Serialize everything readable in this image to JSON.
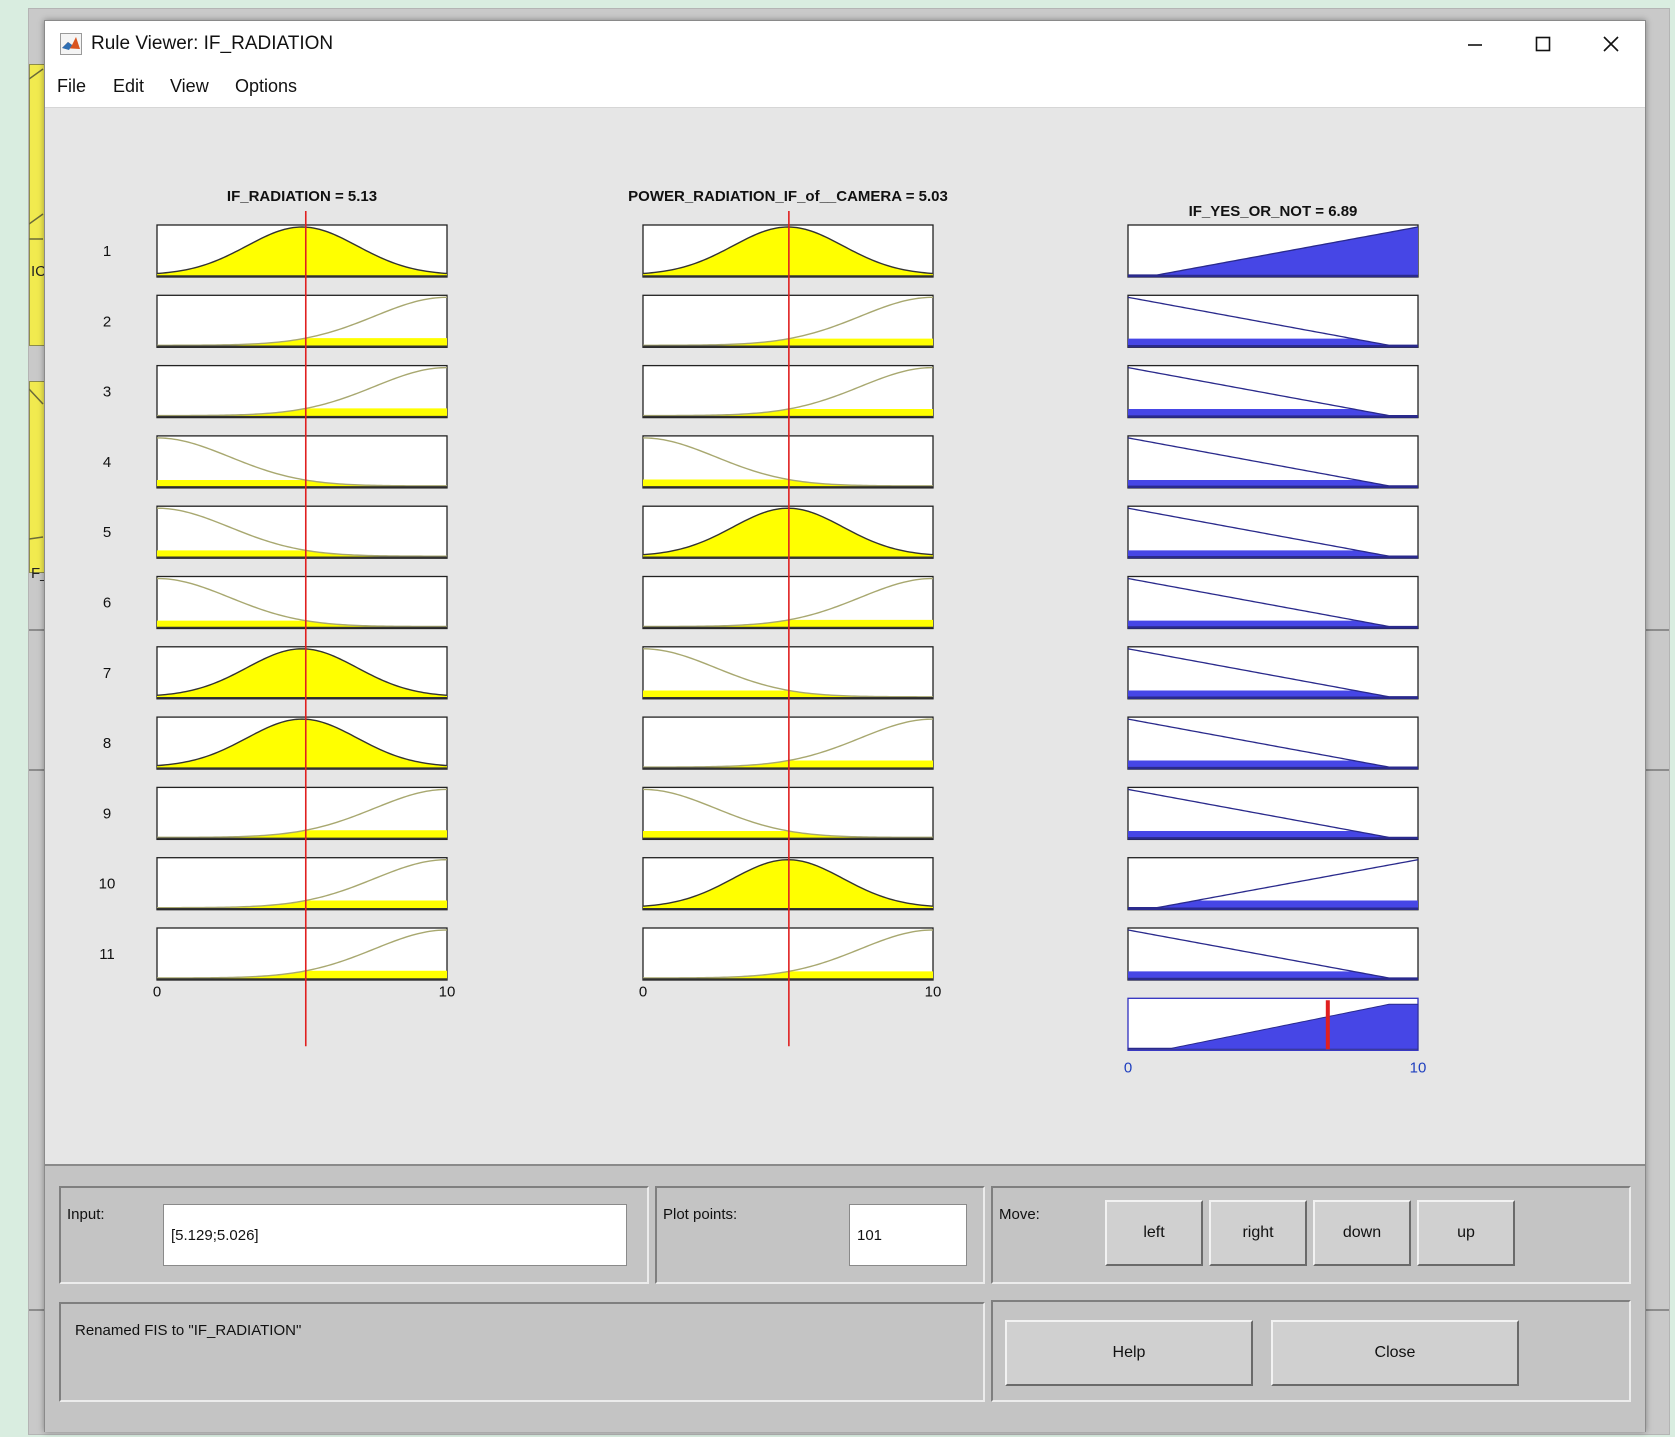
{
  "window": {
    "title": "Rule Viewer: IF_RADIATION",
    "minimize_label": "–",
    "maximize_label": "□",
    "close_label": "✕"
  },
  "menu": [
    "File",
    "Edit",
    "View",
    "Options"
  ],
  "background_window": {
    "fragments": [
      "IC",
      "F_"
    ]
  },
  "rule_viewer": {
    "inputs": [
      {
        "title": "IF_RADIATION = 5.13",
        "value": 5.13,
        "range": [
          0,
          10
        ]
      },
      {
        "title": "POWER_RADIATION_IF_of__CAMERA = 5.03",
        "value": 5.03,
        "range": [
          0,
          10
        ]
      }
    ],
    "output": {
      "title": "IF_YES_OR_NOT = 6.89",
      "value": 6.89,
      "range": [
        0,
        10
      ]
    },
    "rule_numbers": [
      "1",
      "2",
      "3",
      "4",
      "5",
      "6",
      "7",
      "8",
      "9",
      "10",
      "11"
    ],
    "rules": [
      {
        "in1": "mid",
        "in2": "mid",
        "out": "up"
      },
      {
        "in1": "high",
        "in2": "high",
        "out": "down"
      },
      {
        "in1": "high",
        "in2": "high",
        "out": "down"
      },
      {
        "in1": "low",
        "in2": "low",
        "out": "down"
      },
      {
        "in1": "low",
        "in2": "mid",
        "out": "down"
      },
      {
        "in1": "low",
        "in2": "high",
        "out": "down"
      },
      {
        "in1": "mid",
        "in2": "low",
        "out": "down"
      },
      {
        "in1": "mid",
        "in2": "high",
        "out": "down"
      },
      {
        "in1": "high",
        "in2": "low",
        "out": "down"
      },
      {
        "in1": "high",
        "in2": "mid",
        "out": "up"
      },
      {
        "in1": "high",
        "in2": "high",
        "out": "down"
      }
    ],
    "axis_ticks": {
      "min": "0",
      "max": "10"
    },
    "colors": {
      "fill_active": "#ffff00",
      "curve_inactive": "#a8a870",
      "cursor": "#e02020",
      "output_fill": "#4646e6",
      "output_line": "#2a2a8c",
      "output_axis_text": "#1f3fbf"
    }
  },
  "controls": {
    "input_label": "Input:",
    "input_value": "[5.129;5.026]",
    "plot_points_label": "Plot points:",
    "plot_points_value": "101",
    "move_label": "Move:",
    "move_buttons": [
      "left",
      "right",
      "down",
      "up"
    ],
    "status": "Renamed FIS to \"IF_RADIATION\"",
    "help_label": "Help",
    "close_label": "Close"
  }
}
